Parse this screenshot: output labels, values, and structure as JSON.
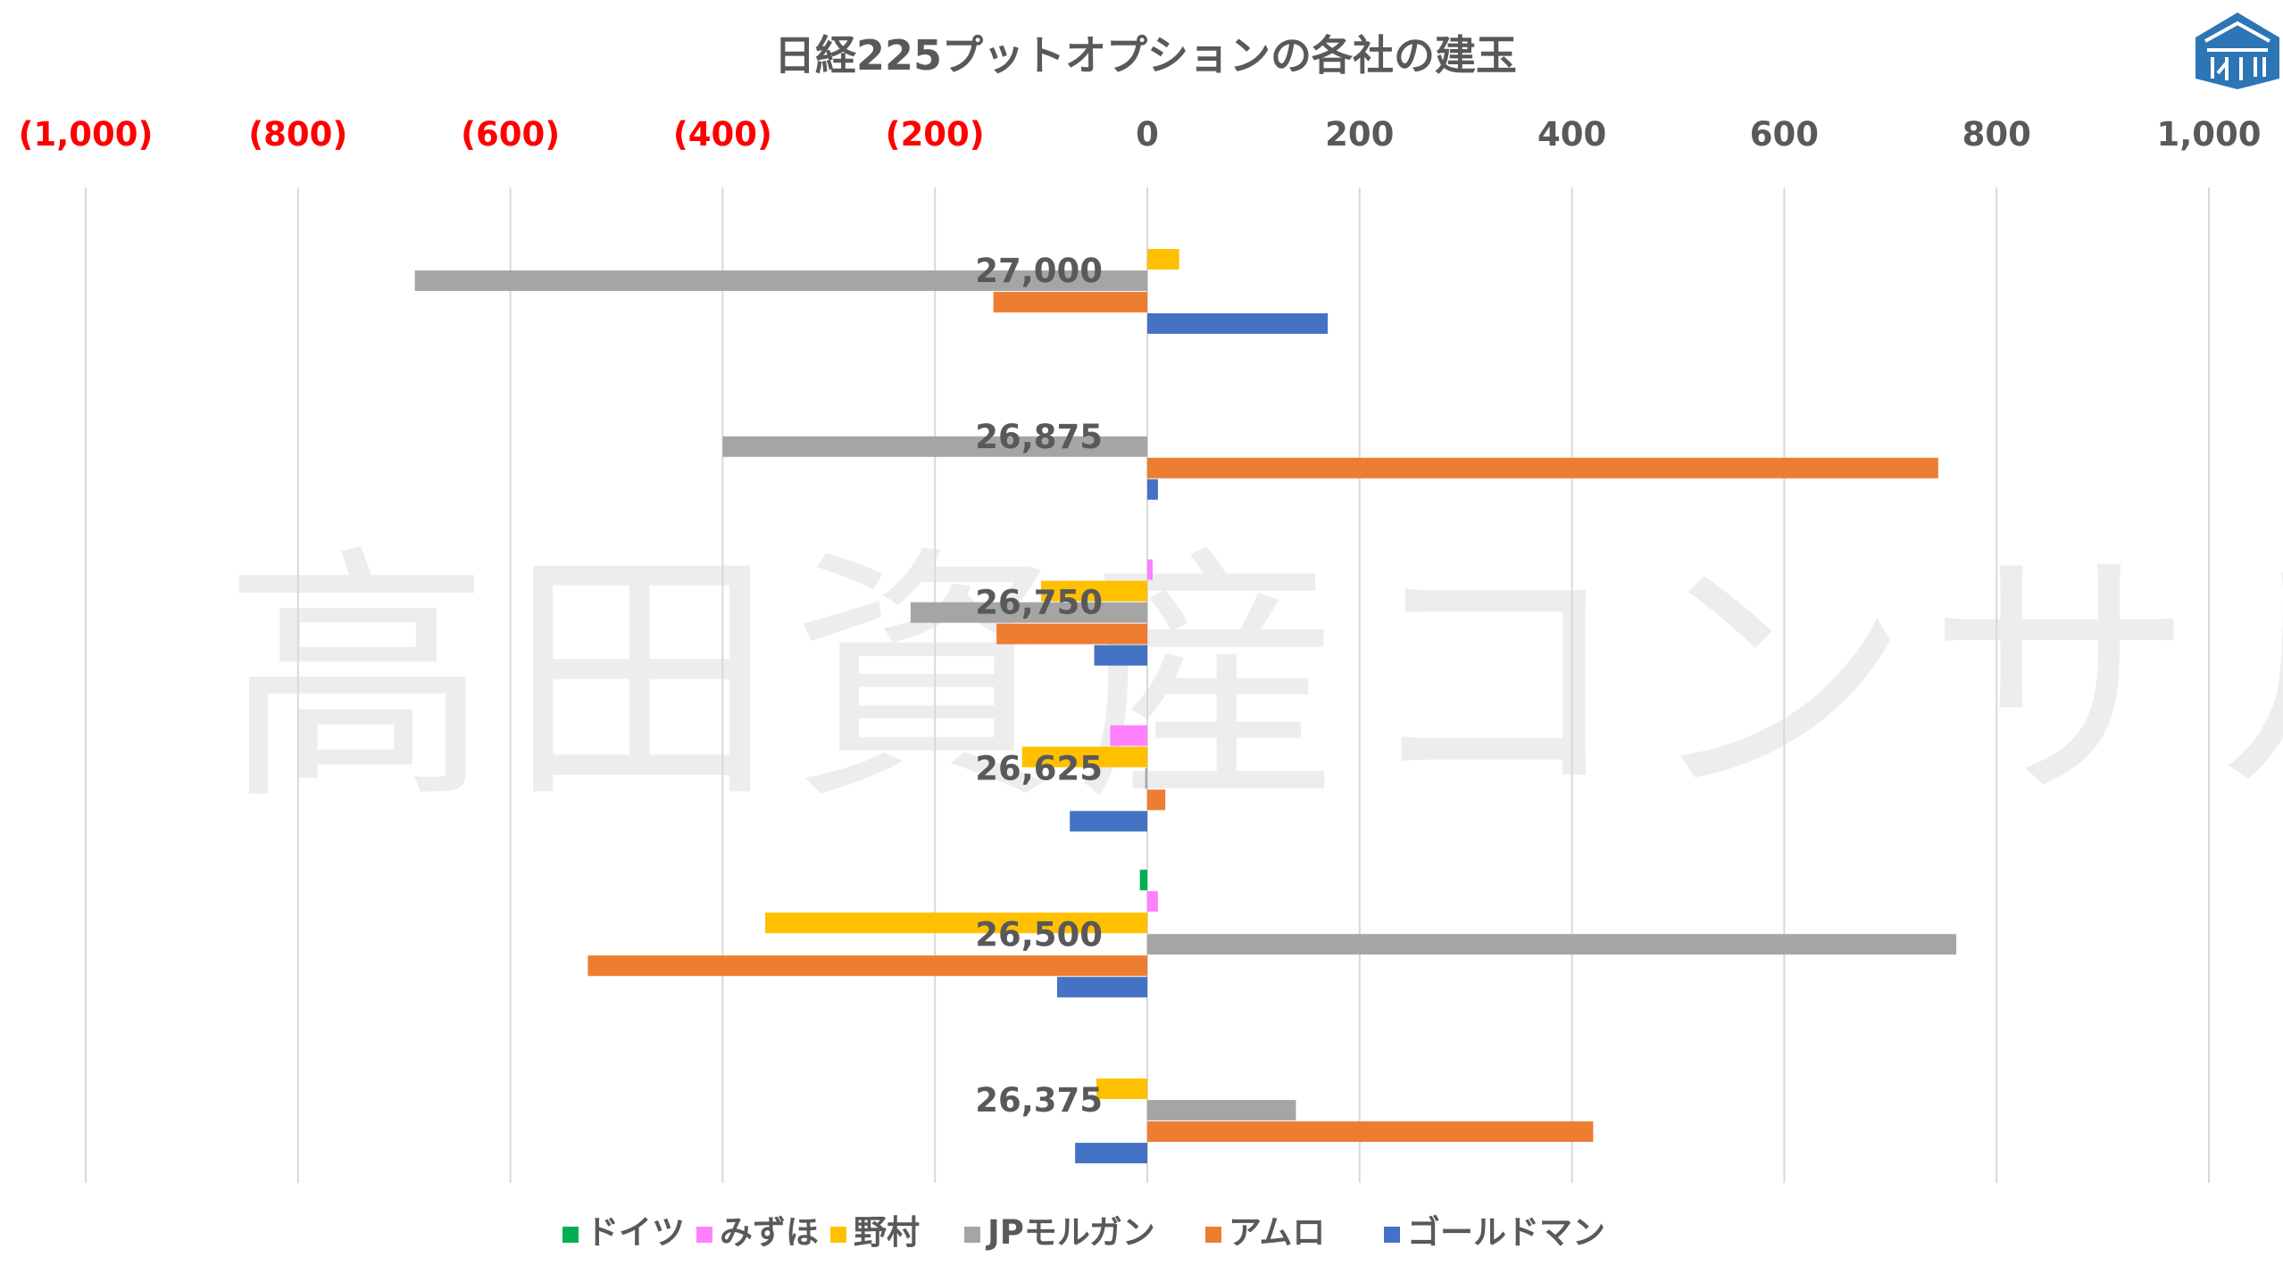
{
  "chart_data": {
    "type": "bar",
    "orientation": "horizontal",
    "title": "日経225プットオプションの各社の建玉",
    "xlim": [
      -1000,
      1000
    ],
    "x_ticks": [
      -1000,
      -800,
      -600,
      -400,
      -200,
      0,
      200,
      400,
      600,
      800,
      1000
    ],
    "x_tick_labels": [
      "(1,000)",
      "(800)",
      "(600)",
      "(400)",
      "(200)",
      "0",
      "200",
      "400",
      "600",
      "800",
      "1,000"
    ],
    "negative_tick_color": "#ff0000",
    "positive_tick_color": "#595959",
    "grid": "vertical",
    "legend_position": "bottom",
    "categories": [
      "27,000",
      "26,875",
      "26,750",
      "26,625",
      "26,500",
      "26,375"
    ],
    "series": [
      {
        "name": "ドイツ",
        "color": "#00b050",
        "values": [
          0,
          0,
          0,
          0,
          -7,
          0
        ]
      },
      {
        "name": "みずほ",
        "color": "#ff80ff",
        "values": [
          0,
          0,
          5,
          -35,
          10,
          0
        ]
      },
      {
        "name": "野村",
        "color": "#ffc000",
        "values": [
          30,
          0,
          -100,
          -118,
          -360,
          -48
        ]
      },
      {
        "name": "JPモルガン",
        "color": "#a5a5a5",
        "values": [
          -690,
          -400,
          -223,
          -2,
          762,
          140
        ]
      },
      {
        "name": "アムロ",
        "color": "#ed7d31",
        "values": [
          -145,
          745,
          -142,
          17,
          -527,
          420
        ]
      },
      {
        "name": "ゴールドマン",
        "color": "#4472c4",
        "values": [
          170,
          10,
          -50,
          -73,
          -85,
          -68
        ]
      }
    ]
  },
  "watermark": "高田資産コンサル",
  "logo": {
    "name": "takada-logo-icon",
    "color": "#2e75b6"
  }
}
